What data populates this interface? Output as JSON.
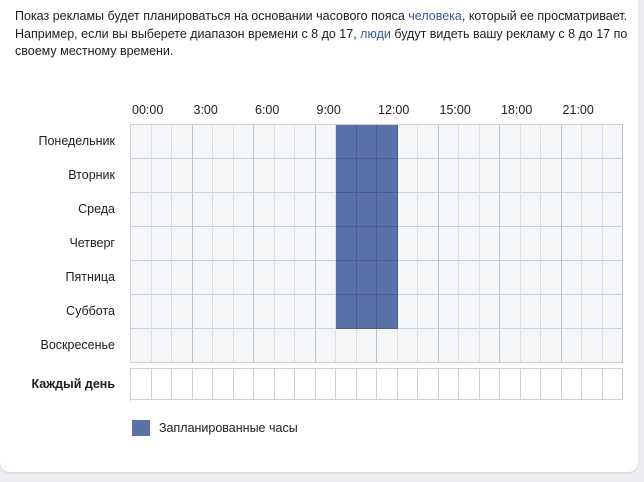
{
  "description": {
    "part1": "Показ рекламы будет планироваться на основании часового пояса ",
    "link1": "человека",
    "part2": ", который ее просматривает.",
    "part3": "Например, если вы выберете диапазон времени с 8 до 17, ",
    "link2": "люди",
    "part4": " будут видеть вашу рекламу с 8 до 17 по своему местному времени."
  },
  "schedule": {
    "hour_labels": [
      "00:00",
      "3:00",
      "6:00",
      "9:00",
      "12:00",
      "15:00",
      "18:00",
      "21:00"
    ],
    "days": [
      "Понедельник",
      "Вторник",
      "Среда",
      "Четверг",
      "Пятница",
      "Суббота",
      "Воскресенье"
    ],
    "every_day_label": "Каждый день",
    "scheduled_hours": {
      "Понедельник": [
        10,
        11,
        12
      ],
      "Вторник": [
        10,
        11,
        12
      ],
      "Среда": [
        10,
        11,
        12
      ],
      "Четверг": [
        10,
        11,
        12
      ],
      "Пятница": [
        10,
        11,
        12
      ],
      "Суббота": [
        10,
        11,
        12
      ],
      "Воскресенье": []
    }
  },
  "legend": {
    "label": "Запланированные часы",
    "color": "#5b72a8"
  }
}
